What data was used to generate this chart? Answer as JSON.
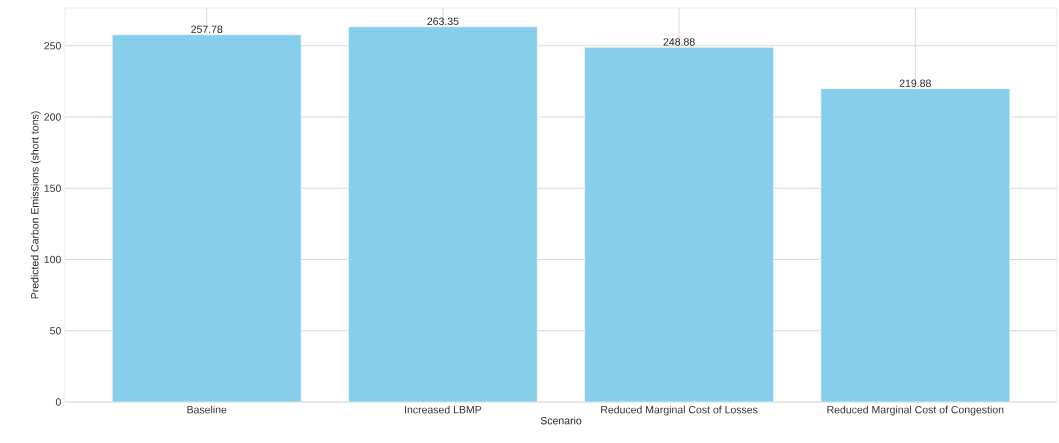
{
  "chart_data": {
    "type": "bar",
    "xlabel": "Scenario",
    "ylabel": "Predicted Carbon Emissions (short tons)",
    "categories": [
      "Baseline",
      "Increased LBMP",
      "Reduced Marginal Cost of Losses",
      "Reduced Marginal Cost of Congestion"
    ],
    "values": [
      257.78,
      263.35,
      248.88,
      219.88
    ],
    "color": "#87ceeb",
    "ylim": [
      0,
      276.5
    ],
    "yticks": [
      0,
      50,
      100,
      150,
      200,
      250
    ],
    "grid": true,
    "data_labels": true
  }
}
